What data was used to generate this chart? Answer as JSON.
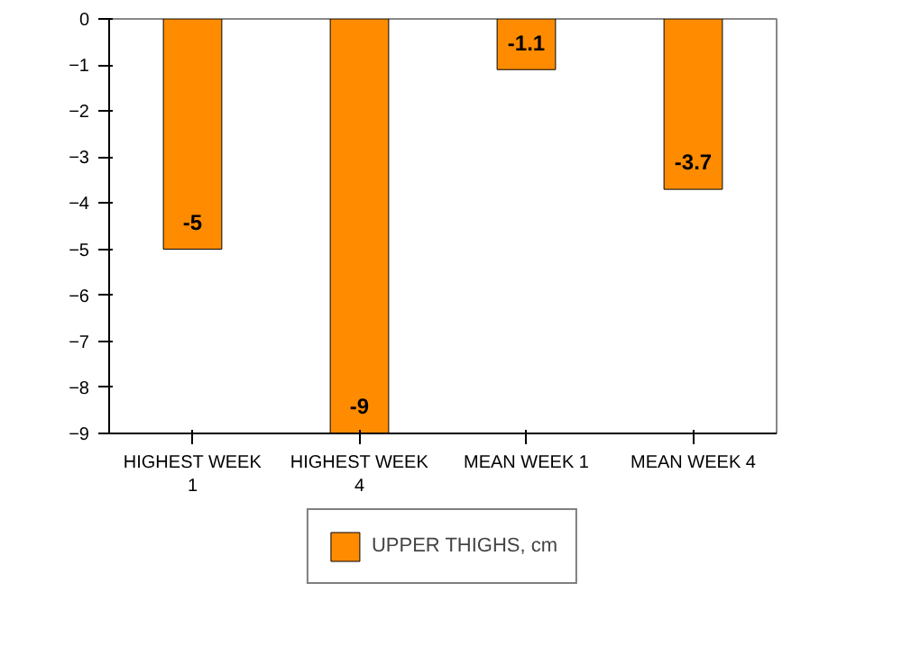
{
  "chart_data": {
    "type": "bar",
    "categories": [
      "HIGHEST WEEK\n1",
      "HIGHEST WEEK\n4",
      "MEAN WEEK 1",
      "MEAN WEEK 4"
    ],
    "series": [
      {
        "name": "UPPER THIGHS, cm",
        "color": "#ff8c00",
        "values": [
          -5,
          -9,
          -1.1,
          -3.7
        ]
      }
    ],
    "ylim": [
      -9,
      0
    ],
    "yticks": [
      -9,
      -8,
      -7,
      -6,
      -5,
      -4,
      -3,
      -2,
      -1,
      0
    ],
    "data_labels": true,
    "grid": false,
    "legend": "bottom"
  }
}
